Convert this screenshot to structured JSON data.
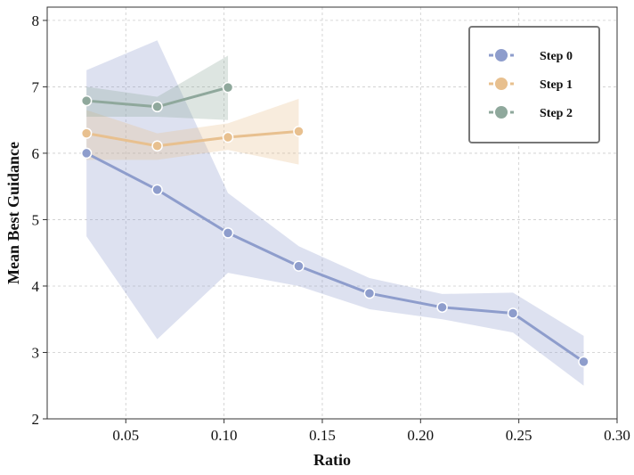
{
  "chart_data": {
    "type": "line",
    "xlabel": "Ratio",
    "ylabel": "Mean Best Guidance",
    "xlim": [
      0.01,
      0.3
    ],
    "ylim": [
      2,
      8.2
    ],
    "xticks": [
      0.05,
      0.1,
      0.15,
      0.2,
      0.25,
      0.3
    ],
    "xtick_labels": [
      "0.05",
      "0.10",
      "0.15",
      "0.20",
      "0.25",
      "0.30"
    ],
    "yticks": [
      2,
      3,
      4,
      5,
      6,
      7,
      8
    ],
    "ytick_labels": [
      "2",
      "3",
      "4",
      "5",
      "6",
      "7",
      "8"
    ],
    "grid": true,
    "legend_position": "top-right",
    "series": [
      {
        "name": "Step 0",
        "color": "#8e9dcc",
        "x": [
          0.03,
          0.066,
          0.102,
          0.138,
          0.174,
          0.211,
          0.247,
          0.283
        ],
        "y": [
          6.0,
          5.45,
          4.8,
          4.3,
          3.89,
          3.68,
          3.59,
          2.86
        ],
        "lower": [
          4.75,
          3.2,
          4.2,
          4.0,
          3.65,
          3.5,
          3.3,
          2.5
        ],
        "upper": [
          7.25,
          7.7,
          5.4,
          4.6,
          4.12,
          3.88,
          3.9,
          3.25
        ]
      },
      {
        "name": "Step 1",
        "color": "#e8c08f",
        "x": [
          0.03,
          0.066,
          0.102,
          0.138
        ],
        "y": [
          6.3,
          6.11,
          6.24,
          6.33
        ],
        "lower": [
          5.9,
          5.9,
          6.05,
          5.83
        ],
        "upper": [
          6.65,
          6.3,
          6.45,
          6.82
        ]
      },
      {
        "name": "Step 2",
        "color": "#8fa89c",
        "x": [
          0.03,
          0.066,
          0.102
        ],
        "y": [
          6.79,
          6.7,
          6.99
        ],
        "lower": [
          6.55,
          6.55,
          6.5
        ],
        "upper": [
          7.0,
          6.85,
          7.47
        ]
      }
    ]
  }
}
